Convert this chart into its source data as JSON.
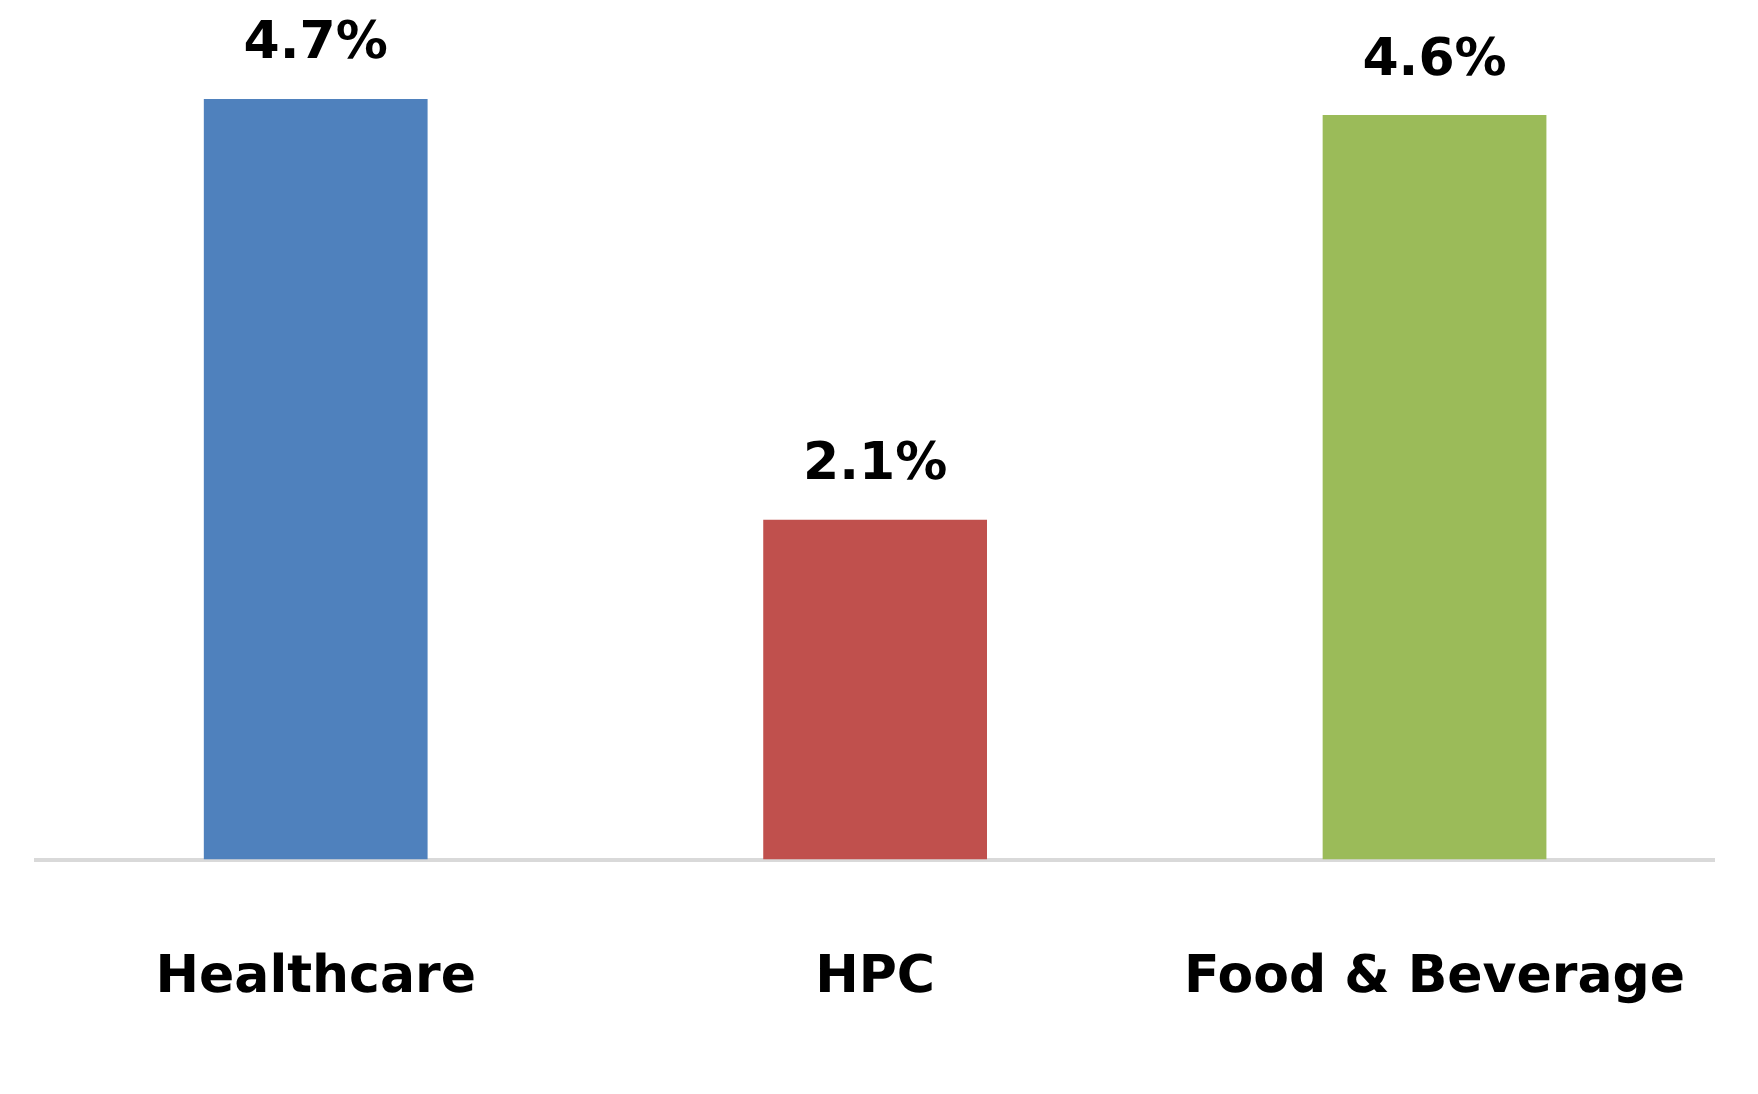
{
  "chart_data": {
    "type": "bar",
    "categories": [
      "Healthcare",
      "HPC",
      "Food & Beverage"
    ],
    "values": [
      4.7,
      2.1,
      4.6
    ],
    "colors": [
      "#4f81bd",
      "#c0504d",
      "#9bbb59"
    ],
    "value_labels": [
      "4.7%",
      "2.1%",
      "4.6%"
    ]
  }
}
